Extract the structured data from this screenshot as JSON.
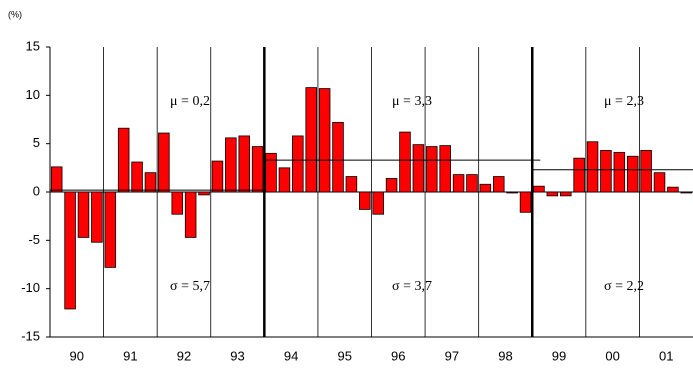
{
  "chart_data": {
    "type": "bar",
    "y_label": "(%)",
    "categories": [
      null,
      "90",
      null,
      null,
      null,
      "91",
      null,
      null,
      null,
      "92",
      null,
      null,
      null,
      "93",
      null,
      null,
      null,
      "94",
      null,
      null,
      null,
      "95",
      null,
      null,
      null,
      "96",
      null,
      null,
      null,
      "97",
      null,
      null,
      null,
      "98",
      null,
      null,
      null,
      "99",
      null,
      null,
      null,
      "00",
      null,
      null,
      null,
      "01",
      null,
      null
    ],
    "values": [
      2.6,
      -12.1,
      -4.7,
      -5.2,
      -7.8,
      6.6,
      3.1,
      2.0,
      6.1,
      -2.3,
      -4.7,
      -0.3,
      3.2,
      5.6,
      5.8,
      4.7,
      4.0,
      2.5,
      5.8,
      10.8,
      10.7,
      7.2,
      1.6,
      -1.8,
      -2.3,
      1.4,
      6.2,
      4.9,
      4.7,
      4.8,
      1.8,
      1.8,
      0.8,
      1.6,
      -0.1,
      -2.1,
      0.6,
      -0.4,
      -0.4,
      3.5,
      5.2,
      4.3,
      4.1,
      3.7,
      4.3,
      2.0,
      0.5,
      -0.1
    ],
    "color": "#ff0000",
    "ylim": [
      -15,
      15
    ],
    "yticks": [
      -15,
      -10,
      -5,
      0,
      5,
      10,
      15
    ],
    "periods": [
      {
        "mean": 0.2,
        "mean_label": "μ = 0,2",
        "sd_label": "σ = 5,7"
      },
      {
        "mean": 3.3,
        "mean_label": "μ = 3,3",
        "sd_label": "σ = 3,7"
      },
      {
        "mean": 2.3,
        "mean_label": "μ = 2,3",
        "sd_label": "σ = 2,2"
      }
    ]
  }
}
